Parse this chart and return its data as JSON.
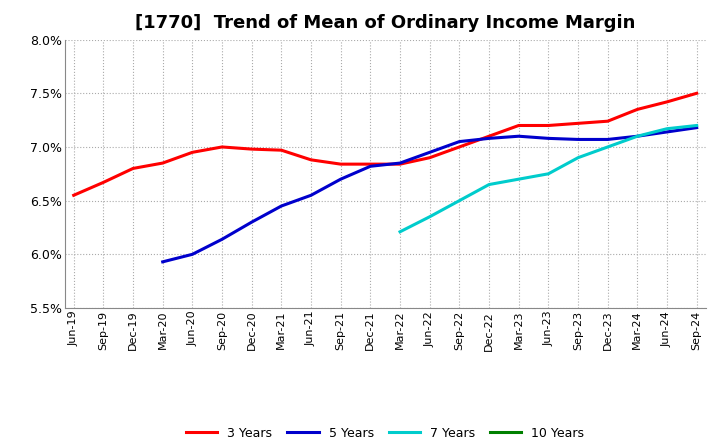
{
  "title": "[1770]  Trend of Mean of Ordinary Income Margin",
  "ylim": [
    0.055,
    0.08
  ],
  "yticks": [
    0.055,
    0.06,
    0.065,
    0.07,
    0.075,
    0.08
  ],
  "x_labels": [
    "Jun-19",
    "Sep-19",
    "Dec-19",
    "Mar-20",
    "Jun-20",
    "Sep-20",
    "Dec-20",
    "Mar-21",
    "Jun-21",
    "Sep-21",
    "Dec-21",
    "Mar-22",
    "Jun-22",
    "Sep-22",
    "Dec-22",
    "Mar-23",
    "Jun-23",
    "Sep-23",
    "Dec-23",
    "Mar-24",
    "Jun-24",
    "Sep-24"
  ],
  "series_3y": [
    0.0655,
    0.0667,
    0.068,
    0.0685,
    0.0695,
    0.07,
    0.0698,
    0.0697,
    0.0688,
    0.0684,
    0.0684,
    0.0684,
    0.069,
    0.07,
    0.071,
    0.072,
    0.072,
    0.0722,
    0.0724,
    0.0735,
    0.0742,
    0.075
  ],
  "series_5y": [
    null,
    null,
    null,
    0.0593,
    0.06,
    0.0614,
    0.063,
    0.0645,
    0.0655,
    0.067,
    0.0682,
    0.0685,
    0.0695,
    0.0705,
    0.0708,
    0.071,
    0.0708,
    0.0707,
    0.0707,
    0.071,
    0.0714,
    0.0718
  ],
  "series_7y": [
    null,
    null,
    null,
    null,
    null,
    null,
    null,
    null,
    null,
    null,
    null,
    0.0621,
    0.0635,
    0.065,
    0.0665,
    0.067,
    0.0675,
    0.069,
    0.07,
    0.071,
    0.0717,
    0.072
  ],
  "series_10y": [
    null,
    null,
    null,
    null,
    null,
    null,
    null,
    null,
    null,
    null,
    null,
    null,
    null,
    null,
    null,
    null,
    null,
    null,
    null,
    null,
    null,
    null
  ],
  "color_3y": "#ff0000",
  "color_5y": "#0000cc",
  "color_7y": "#00cccc",
  "color_10y": "#008000",
  "line_width": 2.2,
  "background_color": "#ffffff",
  "grid_color": "#aaaaaa",
  "title_fontsize": 13,
  "tick_fontsize": 8,
  "legend_labels": [
    "3 Years",
    "5 Years",
    "7 Years",
    "10 Years"
  ]
}
